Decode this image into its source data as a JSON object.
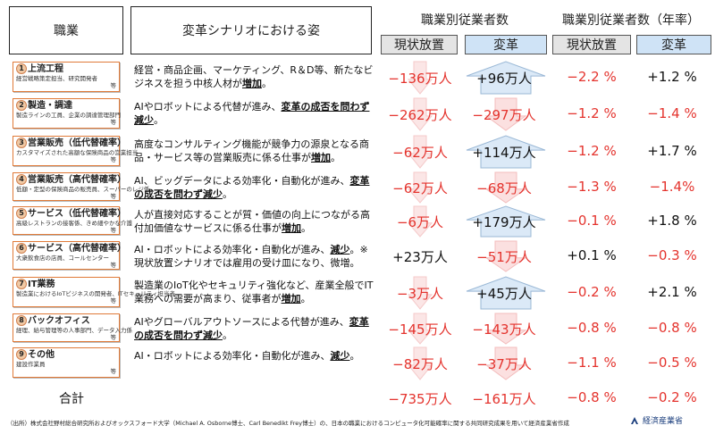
{
  "header": {
    "occupation": "職業",
    "scenario": "変革シナリオにおける姿",
    "employees": "職業別従業者数",
    "employees_rate": "職業別従業者数（年率）",
    "status_quo": "現状放置",
    "reform": "変革"
  },
  "rows": [
    {
      "num": "1",
      "title": "上流工程",
      "detail": "経営戦略策定担当、研究開発者",
      "etc": "等",
      "desc_a": "経営・商品企画、マーケティング、R＆D等、新たなビジネスを担う中核人材が",
      "desc_u": "増加",
      "desc_b": "。",
      "sq": "−136万人",
      "rf": "+96万人",
      "sq_rate": "−2.2 %",
      "rf_rate": "+1.2 %"
    },
    {
      "num": "2",
      "title": "製造・調達",
      "detail": "製造ラインの工員、企業の調達管理部門",
      "etc": "等",
      "desc_a": "AIやロボットによる代替が進み、",
      "desc_u": "変革の成否を問わず減少",
      "desc_b": "。",
      "sq": "−262万人",
      "rf": "−297万人",
      "sq_rate": "−1.2 %",
      "rf_rate": "−1.4 %"
    },
    {
      "num": "3",
      "title": "営業販売（低代替確率）",
      "detail": "カスタマイズされた高額な保険商品の営業担当",
      "etc": "等",
      "desc_a": "高度なコンサルティング機能が競争力の源泉となる商品・サービス等の営業販売に係る仕事が",
      "desc_u": "増加",
      "desc_b": "。",
      "sq": "−62万人",
      "rf": "+114万人",
      "sq_rate": "−1.2 %",
      "rf_rate": "+1.7 %"
    },
    {
      "num": "4",
      "title": "営業販売（高代替確率）",
      "detail": "低額・定型の保険商品の販売員、スーパーのレジ係",
      "etc": "等",
      "desc_a": "AI、ビッグデータによる効率化・自動化が進み、",
      "desc_u": "変革の成否を問わず減少",
      "desc_b": "。",
      "sq": "−62万人",
      "rf": "−68万人",
      "sq_rate": "−1.3 %",
      "rf_rate": "−1.4%"
    },
    {
      "num": "5",
      "title": "サービス（低代替確率）",
      "detail": "高級レストランの接客係、きめ細やかな介護",
      "etc": "等",
      "desc_a": "人が直接対応することが質・価値の向上につながる高付加価値なサービスに係る仕事が",
      "desc_u": "増加",
      "desc_b": "。",
      "sq": "−6万人",
      "rf": "+179万人",
      "sq_rate": "−0.1 %",
      "rf_rate": "+1.8 %"
    },
    {
      "num": "6",
      "title": "サービス（高代替確率）",
      "detail": "大衆飲食店の店員、コールセンター",
      "etc": "等",
      "desc_a": "AI・ロボットによる効率化・自動化が進み、",
      "desc_u": "減少",
      "desc_b": "。※現状放置シナリオでは雇用の受け皿になり、微増。",
      "sq": "+23万人",
      "rf": "−51万人",
      "sq_rate": "+0.1 %",
      "rf_rate": "−0.3 %"
    },
    {
      "num": "7",
      "title": "IT業務",
      "detail": "製造業におけるIoTビジネスの開発者、ITセキュリティ担当者",
      "etc": "等",
      "desc_a": "製造業のIoT化やセキュリティ強化など、産業全般でIT業務への需要が高まり、従事者が",
      "desc_u": "増加",
      "desc_b": "。",
      "sq": "−3万人",
      "rf": "+45万人",
      "sq_rate": "−0.2 %",
      "rf_rate": "+2.1 %"
    },
    {
      "num": "8",
      "title": "バックオフィス",
      "detail": "経理、給与管理等の人事部門、データ入力係",
      "etc": "等",
      "desc_a": "AIやグローバルアウトソースによる代替が進み、",
      "desc_u": "変革の成否を問わず減少",
      "desc_b": "。",
      "sq": "−145万人",
      "rf": "−143万人",
      "sq_rate": "−0.8 %",
      "rf_rate": "−0.8 %"
    },
    {
      "num": "9",
      "title": "その他",
      "detail": "建設作業員",
      "etc": "等",
      "desc_a": "AI・ロボットによる効率化・自動化が進み、",
      "desc_u": "減少",
      "desc_b": "。",
      "sq": "−82万人",
      "rf": "−37万人",
      "sq_rate": "−1.1 %",
      "rf_rate": "−0.5 %"
    }
  ],
  "total": {
    "label": "合計",
    "sq": "−735万人",
    "rf": "−161万人",
    "sq_rate": "−0.8 %",
    "rf_rate": "−0.2 %"
  },
  "footnote": "（出所）株式会社野村総合研究所およびオックスフォード大学（Michael A. Osborne博士、Carl Benedikt Frey博士）の、日本の職業におけるコンピュータ化可能確率に関する共同研究成果を用いて経済産業省作成",
  "logo": "経済産業省",
  "colors": {
    "negative": "#e4332d",
    "header_reform": "#cfe3f6",
    "header_status": "#e4e4e4",
    "job_border": "#e07a38"
  }
}
